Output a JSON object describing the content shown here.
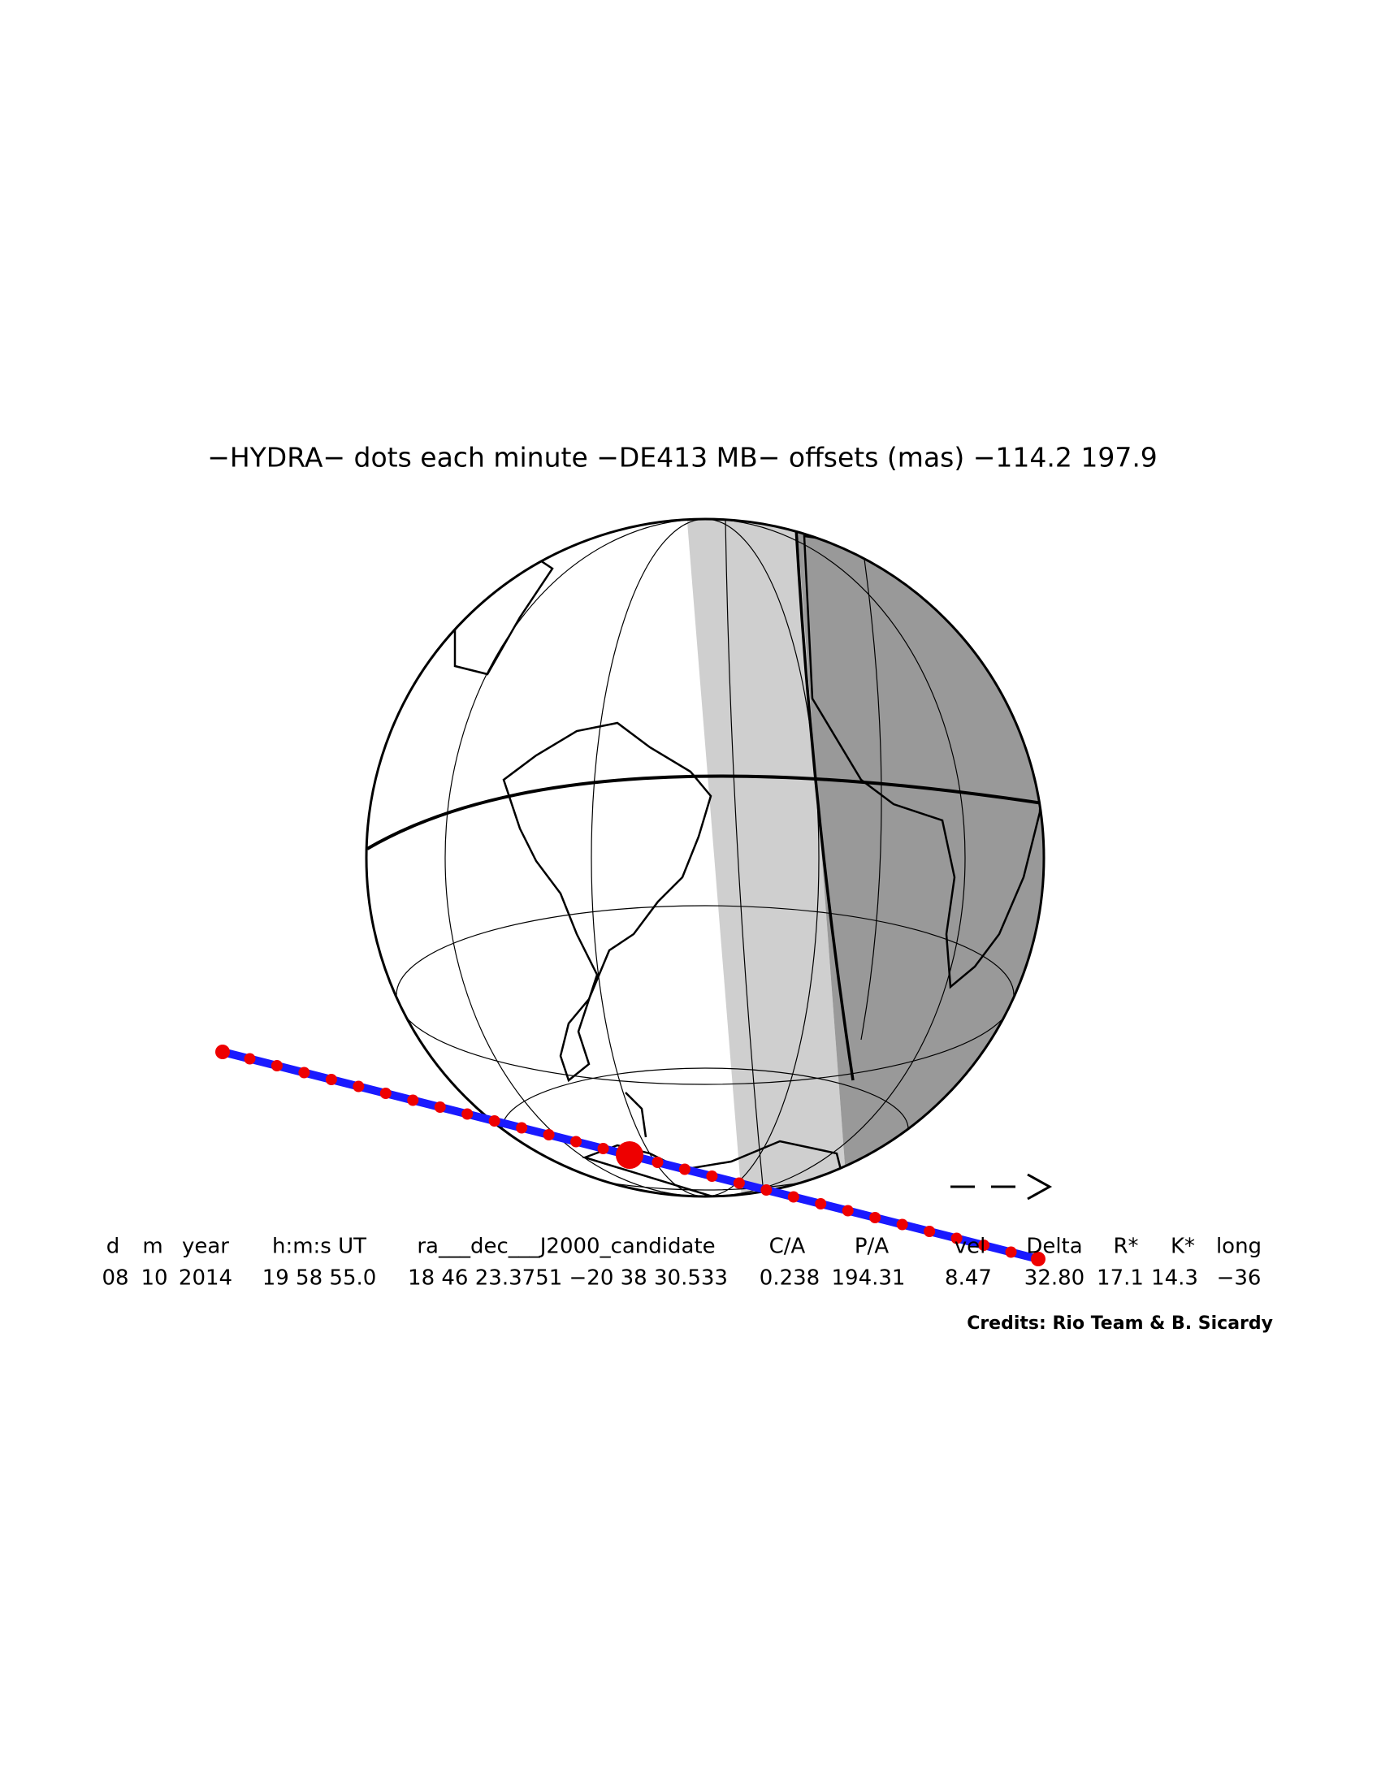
{
  "title": "−HYDRA−  dots each minute −DE413 MB−  offsets (mas) −114.2   197.9",
  "table": {
    "header": [
      "d",
      "m",
      "year",
      "h:m:s UT",
      "ra___dec___J2000_candidate",
      "C/A",
      "P/A",
      "vel",
      "Delta",
      "R*",
      "K*",
      "long"
    ],
    "row": [
      "08",
      "10",
      "2014",
      "19 58 55.0",
      "18 46 23.3751  −20 38 30.533",
      "0.238",
      "194.31",
      "8.47",
      "32.80",
      "17.1",
      "14.3",
      "−36"
    ]
  },
  "credits": "Credits: Rio Team & B. Sicardy"
}
